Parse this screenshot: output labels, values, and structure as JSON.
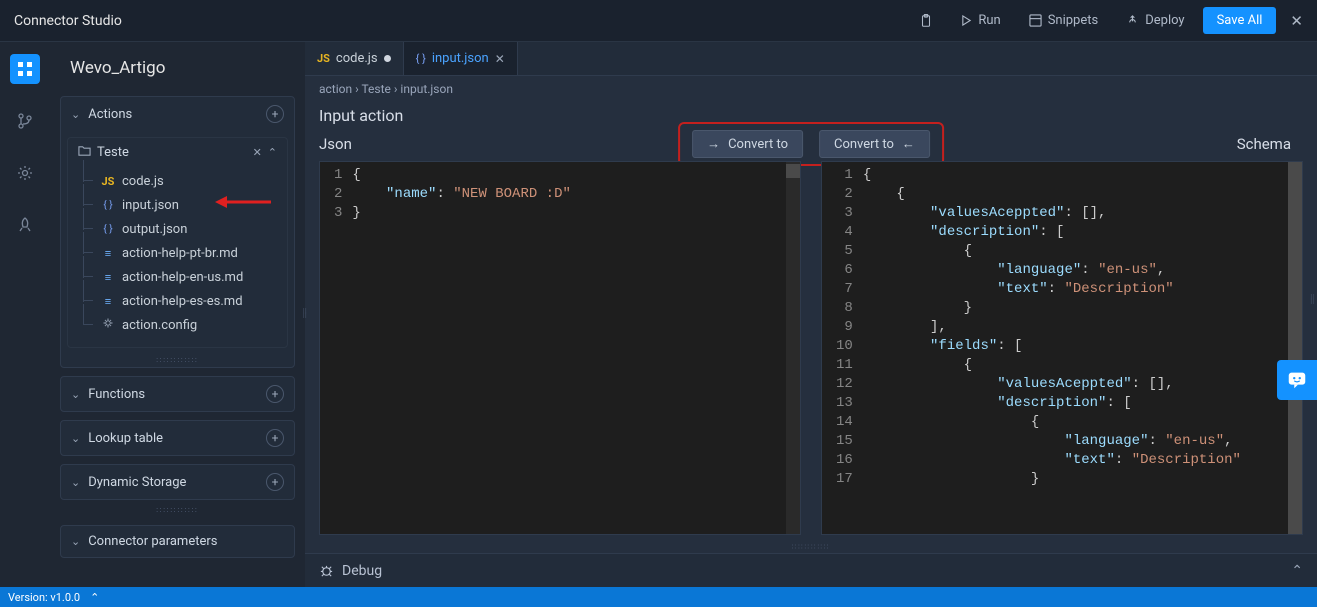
{
  "app": {
    "title": "Connector Studio"
  },
  "topbar": {
    "run": "Run",
    "snippets": "Snippets",
    "deploy": "Deploy",
    "save_all": "Save All"
  },
  "project": {
    "name": "Wevo_Artigo"
  },
  "panels": {
    "actions": "Actions",
    "functions": "Functions",
    "lookup": "Lookup table",
    "storage": "Dynamic Storage",
    "params": "Connector parameters"
  },
  "folder": {
    "name": "Teste"
  },
  "files": [
    {
      "name": "code.js",
      "icon": "js"
    },
    {
      "name": "input.json",
      "icon": "json"
    },
    {
      "name": "output.json",
      "icon": "json"
    },
    {
      "name": "action-help-pt-br.md",
      "icon": "md"
    },
    {
      "name": "action-help-en-us.md",
      "icon": "md"
    },
    {
      "name": "action-help-es-es.md",
      "icon": "md"
    },
    {
      "name": "action.config",
      "icon": "cfg"
    }
  ],
  "tabs": [
    {
      "label": "code.js",
      "icon": "js",
      "dirty": true,
      "active": false
    },
    {
      "label": "input.json",
      "icon": "json",
      "dirty": false,
      "active": true
    }
  ],
  "breadcrumbs": "action  ›  Teste  ›  input.json",
  "section_title": "Input action",
  "convert": {
    "left": "Convert to",
    "right": "Convert to"
  },
  "labels": {
    "json": "Json",
    "schema": "Schema"
  },
  "editor_left": {
    "lines": [
      "1",
      "2",
      "3"
    ],
    "content": [
      [
        {
          "t": "p",
          "v": "{"
        }
      ],
      [
        {
          "t": "p",
          "v": "    "
        },
        {
          "t": "k",
          "v": "\"name\""
        },
        {
          "t": "p",
          "v": ": "
        },
        {
          "t": "s",
          "v": "\"NEW BOARD :D\""
        }
      ],
      [
        {
          "t": "p",
          "v": "}"
        }
      ]
    ]
  },
  "editor_right": {
    "lines": [
      "1",
      "2",
      "3",
      "4",
      "5",
      "6",
      "7",
      "8",
      "9",
      "10",
      "11",
      "12",
      "13",
      "14",
      "15",
      "16",
      "17"
    ],
    "content": [
      [
        {
          "t": "p",
          "v": "{"
        }
      ],
      [
        {
          "t": "p",
          "v": "    {"
        }
      ],
      [
        {
          "t": "p",
          "v": "        "
        },
        {
          "t": "k",
          "v": "\"valuesAceppted\""
        },
        {
          "t": "p",
          "v": ": [],"
        }
      ],
      [
        {
          "t": "p",
          "v": "        "
        },
        {
          "t": "k",
          "v": "\"description\""
        },
        {
          "t": "p",
          "v": ": ["
        }
      ],
      [
        {
          "t": "p",
          "v": "            {"
        }
      ],
      [
        {
          "t": "p",
          "v": "                "
        },
        {
          "t": "k",
          "v": "\"language\""
        },
        {
          "t": "p",
          "v": ": "
        },
        {
          "t": "s",
          "v": "\"en-us\""
        },
        {
          "t": "p",
          "v": ","
        }
      ],
      [
        {
          "t": "p",
          "v": "                "
        },
        {
          "t": "k",
          "v": "\"text\""
        },
        {
          "t": "p",
          "v": ": "
        },
        {
          "t": "s",
          "v": "\"Description\""
        }
      ],
      [
        {
          "t": "p",
          "v": "            }"
        }
      ],
      [
        {
          "t": "p",
          "v": "        ],"
        }
      ],
      [
        {
          "t": "p",
          "v": "        "
        },
        {
          "t": "k",
          "v": "\"fields\""
        },
        {
          "t": "p",
          "v": ": ["
        }
      ],
      [
        {
          "t": "p",
          "v": "            {"
        }
      ],
      [
        {
          "t": "p",
          "v": "                "
        },
        {
          "t": "k",
          "v": "\"valuesAceppted\""
        },
        {
          "t": "p",
          "v": ": [],"
        }
      ],
      [
        {
          "t": "p",
          "v": "                "
        },
        {
          "t": "k",
          "v": "\"description\""
        },
        {
          "t": "p",
          "v": ": ["
        }
      ],
      [
        {
          "t": "p",
          "v": "                    {"
        }
      ],
      [
        {
          "t": "p",
          "v": "                        "
        },
        {
          "t": "k",
          "v": "\"language\""
        },
        {
          "t": "p",
          "v": ": "
        },
        {
          "t": "s",
          "v": "\"en-us\""
        },
        {
          "t": "p",
          "v": ","
        }
      ],
      [
        {
          "t": "p",
          "v": "                        "
        },
        {
          "t": "k",
          "v": "\"text\""
        },
        {
          "t": "p",
          "v": ": "
        },
        {
          "t": "s",
          "v": "\"Description\""
        }
      ],
      [
        {
          "t": "p",
          "v": "                    }"
        }
      ]
    ]
  },
  "debug": {
    "label": "Debug"
  },
  "status": {
    "version": "Version: v1.0.0"
  },
  "colors": {
    "bg": "#1f2733",
    "panel": "#222c3a",
    "editor": "#1e1e1e",
    "accent": "#1492ff",
    "highlight_border": "#c4201e",
    "statusbar": "#0a77d6",
    "key": "#9cdcfe",
    "string": "#ce9178"
  }
}
